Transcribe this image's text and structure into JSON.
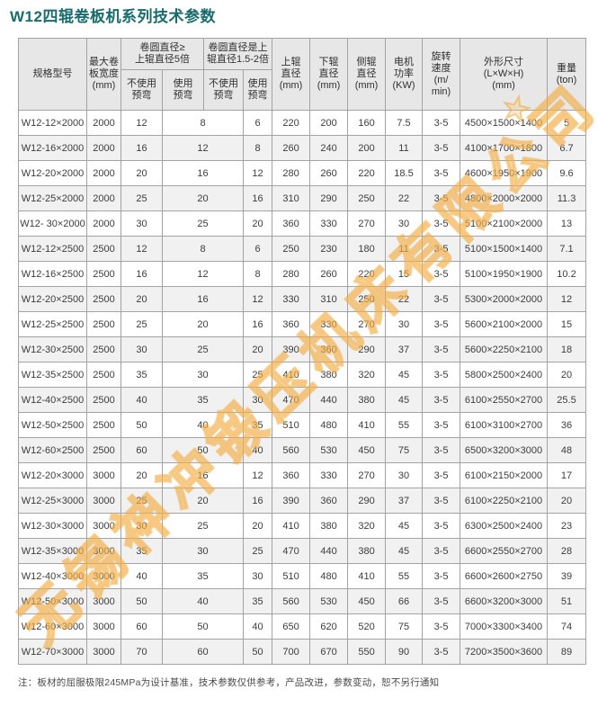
{
  "page": {
    "title": "W12四辊卷板机系列技术参数",
    "note": "注：板材的屈服极限245MPa为设计基准，技术参数仅供参考，产品改进，参数变动，恕不另行通知"
  },
  "colors": {
    "title_teal": "#1a6b6c",
    "header_bg": "#e7e7e7",
    "row_alt_bg": "#f1f1f1",
    "border_gray": "#a3a3a3",
    "watermark_orange": "#f0a93c"
  },
  "watermark": {
    "text": "无锡神冲锻压机床有限公司",
    "star_icon": "★"
  },
  "table": {
    "header": {
      "model": "规格型号",
      "max_width": "最大卷\n板宽度\n(mm)",
      "group_roll_ge5": "卷圆直径≥\n上辊直径5倍",
      "group_roll_1_5_2": "卷圆直径是上\n辊直径1.5-2倍",
      "no_prebend": "不使用\n预弯",
      "prebend": "使用\n预弯",
      "top_roller": "上辊\n直径\n(mm)",
      "bottom_roller": "下辊\n直径\n(mm)",
      "side_roller": "侧辊\n直径\n(mm)",
      "motor_power": "电机\n功率\n(KW)",
      "rotate_speed": "旋转\n速度\n(m/\nmin)",
      "dimensions": "外形尺寸\n(L×W×H)\n(mm)",
      "weight": "重量\n(ton)"
    },
    "rows": [
      [
        "W12-12×2000",
        "2000",
        "12",
        "8",
        "6",
        "220",
        "200",
        "160",
        "7.5",
        "3-5",
        "4500×1500×1400",
        "5"
      ],
      [
        "W12-16×2000",
        "2000",
        "16",
        "12",
        "8",
        "260",
        "240",
        "200",
        "11",
        "3-5",
        "4100×1700×1800",
        "6.7"
      ],
      [
        "W12-20×2000",
        "2000",
        "20",
        "16",
        "12",
        "280",
        "260",
        "220",
        "18.5",
        "3-5",
        "4600×1950×1900",
        "9.6"
      ],
      [
        "W12-25×2000",
        "2000",
        "25",
        "20",
        "16",
        "310",
        "290",
        "250",
        "22",
        "3-5",
        "4800×2000×2000",
        "11.3"
      ],
      [
        "W12- 30×2000",
        "2000",
        "30",
        "25",
        "20",
        "360",
        "330",
        "270",
        "30",
        "3-5",
        "5100×2100×2000",
        "13"
      ],
      [
        "W12-12×2500",
        "2500",
        "12",
        "8",
        "6",
        "250",
        "230",
        "180",
        "11",
        "3-5",
        "5100×1500×1400",
        "7.1"
      ],
      [
        "W12-16×2500",
        "2500",
        "16",
        "12",
        "8",
        "280",
        "260",
        "220",
        "15",
        "3-5",
        "5100×1950×1900",
        "10.2"
      ],
      [
        "W12-20×2500",
        "2500",
        "20",
        "16",
        "12",
        "330",
        "310",
        "250",
        "22",
        "3-5",
        "5300×2000×2000",
        "12"
      ],
      [
        "W12-25×2500",
        "2500",
        "25",
        "20",
        "16",
        "360",
        "330",
        "270",
        "30",
        "3-5",
        "5600×2100×2000",
        "15"
      ],
      [
        "W12-30×2500",
        "2500",
        "30",
        "25",
        "20",
        "390",
        "360",
        "290",
        "37",
        "3-5",
        "5600×2250×2100",
        "18"
      ],
      [
        "W12-35×2500",
        "2500",
        "35",
        "30",
        "25",
        "410",
        "380",
        "320",
        "45",
        "3-5",
        "5800×2500×2400",
        "20"
      ],
      [
        "W12-40×2500",
        "2500",
        "40",
        "35",
        "30",
        "470",
        "440",
        "380",
        "45",
        "3-5",
        "6100×2550×2700",
        "25.5"
      ],
      [
        "W12-50×2500",
        "2500",
        "50",
        "40",
        "35",
        "510",
        "480",
        "410",
        "55",
        "3-5",
        "6100×3100×2700",
        "36"
      ],
      [
        "W12-60×2500",
        "2500",
        "60",
        "50",
        "40",
        "560",
        "530",
        "450",
        "75",
        "3-5",
        "6500×3200×3000",
        "48"
      ],
      [
        "W12-20×3000",
        "3000",
        "20",
        "16",
        "12",
        "360",
        "330",
        "270",
        "30",
        "3-5",
        "6100×2150×2000",
        "17"
      ],
      [
        "W12-25×3000",
        "3000",
        "25",
        "20",
        "16",
        "390",
        "360",
        "290",
        "37",
        "3-5",
        "6100×2250×2100",
        "20"
      ],
      [
        "W12-30×3000",
        "3000",
        "30",
        "25",
        "20",
        "410",
        "380",
        "320",
        "45",
        "3-5",
        "6300×2500×2400",
        "23"
      ],
      [
        "W12-35×3000",
        "3000",
        "35",
        "30",
        "25",
        "470",
        "440",
        "380",
        "45",
        "3-5",
        "6600×2550×2700",
        "28"
      ],
      [
        "W12-40×3000",
        "3000",
        "40",
        "35",
        "30",
        "510",
        "480",
        "410",
        "55",
        "3-5",
        "6600×2600×2750",
        "39"
      ],
      [
        "W12-50×3000",
        "3000",
        "50",
        "40",
        "35",
        "560",
        "530",
        "450",
        "66",
        "3-5",
        "6600×3200×3000",
        "51"
      ],
      [
        "W12-60×3000",
        "3000",
        "60",
        "50",
        "40",
        "650",
        "620",
        "520",
        "75",
        "3-5",
        "7000×3300×3400",
        "74"
      ],
      [
        "W12-70×3000",
        "3000",
        "70",
        "60",
        "50",
        "700",
        "670",
        "550",
        "90",
        "3-5",
        "7200×3500×3600",
        "89"
      ]
    ]
  }
}
